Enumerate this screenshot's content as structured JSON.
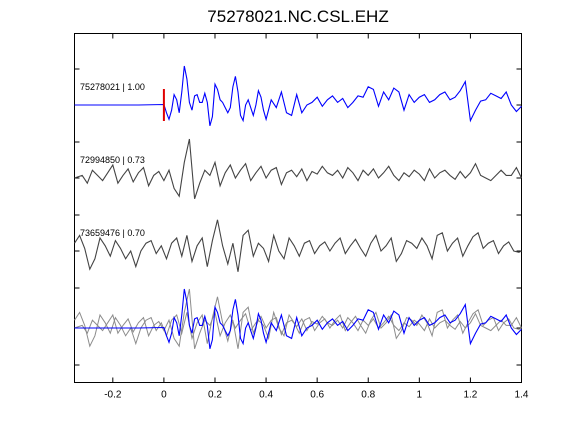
{
  "chart_data": {
    "type": "line",
    "title": "75278021.NC.CSL.EHZ",
    "xlim": [
      -0.35,
      1.4
    ],
    "x_ticks": [
      -0.2,
      0,
      0.2,
      0.4,
      0.6,
      0.8,
      1,
      1.2,
      1.4
    ],
    "x_tick_labels": [
      "-0.2",
      "0",
      "0.2",
      "0.4",
      "0.6",
      "0.8",
      "1",
      "1.2",
      "1.4"
    ],
    "grid": false,
    "pick_marker": {
      "x": 0,
      "color": "#e00000"
    },
    "traces": [
      {
        "label": "75278021 | 1.00",
        "color": "#0000ff",
        "row": 0,
        "x": [
          -0.35,
          -0.1,
          0,
          0.01,
          0.02,
          0.03,
          0.04,
          0.05,
          0.06,
          0.07,
          0.08,
          0.09,
          0.1,
          0.11,
          0.12,
          0.13,
          0.14,
          0.15,
          0.16,
          0.17,
          0.18,
          0.19,
          0.2,
          0.21,
          0.22,
          0.23,
          0.24,
          0.25,
          0.26,
          0.27,
          0.28,
          0.29,
          0.3,
          0.31,
          0.32,
          0.33,
          0.34,
          0.35,
          0.36,
          0.37,
          0.38,
          0.39,
          0.4,
          0.42,
          0.44,
          0.46,
          0.48,
          0.5,
          0.52,
          0.54,
          0.56,
          0.58,
          0.6,
          0.62,
          0.64,
          0.66,
          0.68,
          0.7,
          0.72,
          0.74,
          0.76,
          0.78,
          0.8,
          0.82,
          0.84,
          0.86,
          0.88,
          0.9,
          0.92,
          0.94,
          0.96,
          0.98,
          1,
          1.02,
          1.04,
          1.06,
          1.08,
          1.1,
          1.12,
          1.14,
          1.16,
          1.18,
          1.2,
          1.22,
          1.24,
          1.26,
          1.28,
          1.3,
          1.32,
          1.34,
          1.36,
          1.38,
          1.4
        ],
        "y": [
          0,
          0,
          0.02,
          -0.3,
          -0.55,
          -0.2,
          0.4,
          0.2,
          -0.3,
          0.5,
          1.5,
          1.0,
          0.1,
          -0.2,
          0.35,
          0.4,
          0.1,
          0.1,
          0.45,
          0.1,
          -0.8,
          -0.45,
          0.8,
          0.6,
          0.2,
          0.1,
          -0.1,
          -0.3,
          -0.1,
          0.7,
          1.1,
          0.5,
          -0.4,
          -0.6,
          0.0,
          0.2,
          -0.1,
          -0.4,
          0.0,
          0.55,
          0.3,
          -0.2,
          -0.55,
          0.2,
          -0.1,
          0.5,
          -0.3,
          -0.4,
          0.4,
          -0.3,
          0.0,
          0.1,
          0.3,
          -0.05,
          0.2,
          0.35,
          0.1,
          0.25,
          -0.1,
          0.1,
          0.35,
          0.3,
          0.7,
          0.6,
          -0.05,
          0.5,
          0.2,
          0.65,
          0.5,
          -0.2,
          0.4,
          0.1,
          0.3,
          0.4,
          0.1,
          0.2,
          0.4,
          0.5,
          0.2,
          0.3,
          0.55,
          0.9,
          -0.6,
          -0.2,
          0.15,
          0.2,
          0.45,
          0.35,
          0.25,
          0.5,
          0.0,
          -0.25,
          -0.05
        ]
      },
      {
        "label": "72994850 | 0.73",
        "color": "#444444",
        "row": 1,
        "x": [
          -0.35,
          -0.32,
          -0.3,
          -0.28,
          -0.26,
          -0.24,
          -0.22,
          -0.2,
          -0.18,
          -0.16,
          -0.14,
          -0.12,
          -0.1,
          -0.08,
          -0.06,
          -0.04,
          -0.02,
          0,
          0.02,
          0.04,
          0.06,
          0.08,
          0.1,
          0.12,
          0.14,
          0.16,
          0.18,
          0.2,
          0.22,
          0.24,
          0.26,
          0.28,
          0.3,
          0.32,
          0.34,
          0.36,
          0.38,
          0.4,
          0.42,
          0.44,
          0.46,
          0.48,
          0.5,
          0.52,
          0.54,
          0.56,
          0.58,
          0.6,
          0.62,
          0.64,
          0.66,
          0.68,
          0.7,
          0.72,
          0.74,
          0.76,
          0.78,
          0.8,
          0.82,
          0.84,
          0.86,
          0.88,
          0.9,
          0.92,
          0.94,
          0.96,
          0.98,
          1,
          1.02,
          1.04,
          1.06,
          1.08,
          1.1,
          1.12,
          1.14,
          1.16,
          1.18,
          1.2,
          1.22,
          1.24,
          1.26,
          1.28,
          1.3,
          1.32,
          1.34,
          1.36,
          1.38,
          1.4
        ],
        "y": [
          0,
          0.1,
          -0.2,
          0.3,
          0.1,
          -0.1,
          0.2,
          0.5,
          -0.2,
          0.1,
          0.35,
          -0.15,
          0.2,
          0.4,
          -0.3,
          0.1,
          0.25,
          -0.1,
          0.3,
          -0.4,
          -0.7,
          0.6,
          1.5,
          -0.8,
          -0.2,
          0.3,
          0.1,
          0.6,
          -0.3,
          0.2,
          0.5,
          0.0,
          0.3,
          0.55,
          -0.1,
          0.2,
          0.45,
          0.0,
          0.3,
          0.4,
          -0.25,
          0.2,
          0.3,
          0.05,
          0.35,
          -0.1,
          0.25,
          0.15,
          0.45,
          0.2,
          0.1,
          0.3,
          0.0,
          0.4,
          0.2,
          -0.1,
          0.3,
          0.1,
          0.35,
          0.0,
          0.2,
          0.45,
          0.1,
          -0.1,
          0.2,
          0.05,
          0.3,
          0.15,
          -0.1,
          0.35,
          0.0,
          0.2,
          0.3,
          0.1,
          -0.05,
          0.25,
          0.0,
          0.2,
          0.55,
          0.1,
          0.0,
          -0.1,
          0.1,
          0.3,
          0.1,
          0.1,
          0.4,
          0.0
        ]
      },
      {
        "label": "73659476 | 0.70",
        "color": "#444444",
        "row": 2,
        "x": [
          -0.35,
          -0.33,
          -0.31,
          -0.29,
          -0.27,
          -0.25,
          -0.23,
          -0.21,
          -0.19,
          -0.17,
          -0.15,
          -0.13,
          -0.11,
          -0.09,
          -0.07,
          -0.05,
          -0.03,
          -0.01,
          0.01,
          0.03,
          0.05,
          0.07,
          0.09,
          0.11,
          0.13,
          0.15,
          0.17,
          0.19,
          0.21,
          0.23,
          0.25,
          0.27,
          0.29,
          0.31,
          0.33,
          0.35,
          0.37,
          0.39,
          0.41,
          0.43,
          0.45,
          0.47,
          0.49,
          0.51,
          0.53,
          0.55,
          0.57,
          0.59,
          0.61,
          0.63,
          0.65,
          0.67,
          0.69,
          0.71,
          0.73,
          0.75,
          0.77,
          0.79,
          0.81,
          0.83,
          0.85,
          0.87,
          0.89,
          0.91,
          0.93,
          0.95,
          0.97,
          0.99,
          1.01,
          1.03,
          1.05,
          1.07,
          1.09,
          1.11,
          1.13,
          1.15,
          1.17,
          1.19,
          1.21,
          1.23,
          1.25,
          1.27,
          1.29,
          1.31,
          1.33,
          1.35,
          1.37,
          1.39,
          1.4
        ],
        "y": [
          0.3,
          0.6,
          0.1,
          -0.7,
          -0.3,
          0.5,
          0.2,
          -0.2,
          0.4,
          0.1,
          -0.3,
          0.0,
          -0.6,
          0.0,
          0.3,
          0.4,
          -0.1,
          0.2,
          -0.3,
          0.3,
          0.5,
          -0.2,
          0.6,
          -0.4,
          0.2,
          0.5,
          -0.6,
          0.4,
          1.2,
          0.2,
          -0.5,
          0.3,
          -0.8,
          0.6,
          0.8,
          -0.2,
          0.3,
          0.1,
          -0.4,
          0.6,
          0.0,
          -0.3,
          0.5,
          0.2,
          -0.2,
          0.3,
          0.4,
          -0.1,
          0.2,
          0.35,
          0.0,
          0.3,
          0.5,
          -0.1,
          0.2,
          0.45,
          0.1,
          -0.2,
          0.3,
          0.6,
          0.0,
          0.2,
          0.5,
          -0.4,
          -0.1,
          0.4,
          0.3,
          0.1,
          0.5,
          0.2,
          -0.3,
          0.6,
          0.7,
          0.0,
          0.3,
          0.5,
          -0.2,
          0.2,
          0.55,
          0.7,
          0.1,
          0.3,
          0.4,
          -0.1,
          0.2,
          0.35,
          0.0,
          -0.05,
          0.0
        ]
      }
    ],
    "overlay_row": 3
  }
}
